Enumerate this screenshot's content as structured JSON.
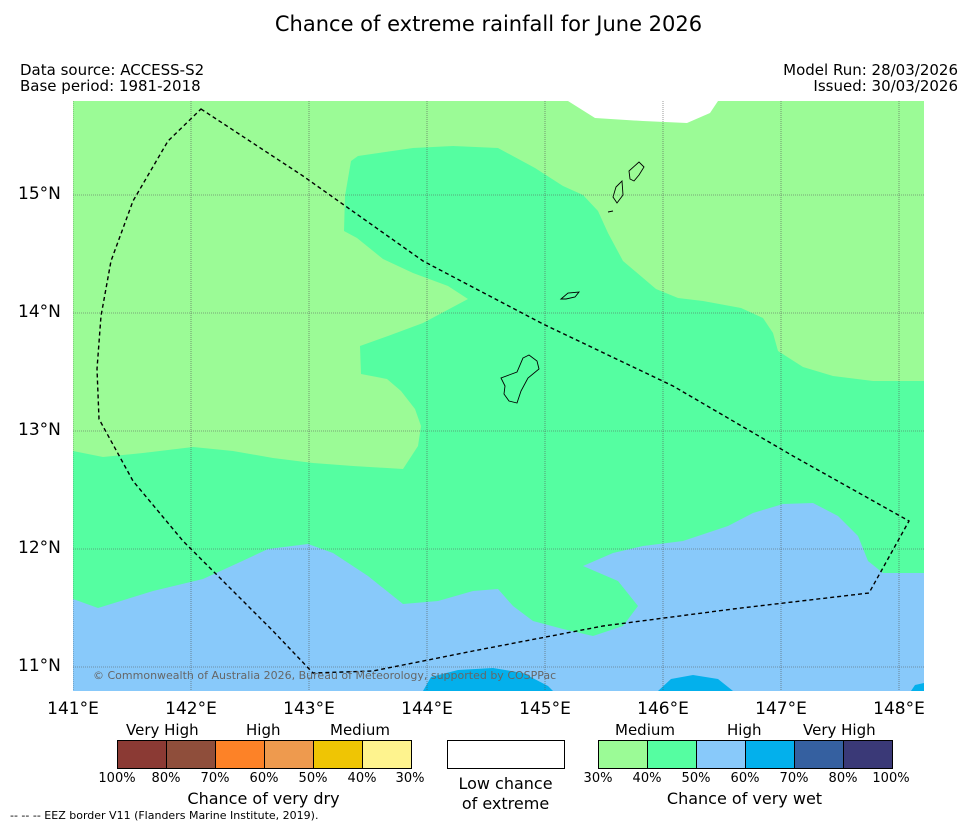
{
  "title": "Chance of extreme rainfall for June 2026",
  "meta": {
    "data_source": "Data source: ACCESS-S2",
    "base_period": "Base period: 1981-2018",
    "model_run": "Model Run: 28/03/2026",
    "issued": "Issued: 30/03/2026"
  },
  "map": {
    "copyright": "© Commonwealth of Australia 2026, Bureau of Meteorology, supported by COSPPac",
    "lat_labels": [
      "15°N",
      "14°N",
      "13°N",
      "12°N",
      "11°N"
    ],
    "lon_labels": [
      "141°E",
      "142°E",
      "143°E",
      "144°E",
      "145°E",
      "146°E",
      "147°E",
      "148°E"
    ],
    "colors": {
      "wet_medium_30_40": "#9bfb96",
      "wet_medium_40_50": "#55fea1",
      "wet_high_50_60": "#88c9fa",
      "wet_high_60_70": "#03b0ec"
    }
  },
  "legend": {
    "dry": {
      "categories": [
        "Very High",
        "High",
        "Medium"
      ],
      "ticks": [
        "100%",
        "80%",
        "70%",
        "60%",
        "50%",
        "40%",
        "30%"
      ],
      "colors": [
        "#8b3a34",
        "#8f4e3b",
        "#fd8227",
        "#ee9a4e",
        "#efc504",
        "#fef38e"
      ],
      "title": "Chance of very dry"
    },
    "neutral": {
      "line1": "Low chance",
      "line2": "of extreme"
    },
    "wet": {
      "categories": [
        "Medium",
        "High",
        "Very High"
      ],
      "ticks": [
        "30%",
        "40%",
        "50%",
        "60%",
        "70%",
        "80%",
        "100%"
      ],
      "colors": [
        "#9bfb96",
        "#55fea1",
        "#88c9fa",
        "#03b0ec",
        "#3560a0",
        "#3a3977"
      ],
      "title": "Chance of very wet"
    }
  },
  "footer": "--  --  -- EEZ border V11 (Flanders Marine Institute, 2019)."
}
